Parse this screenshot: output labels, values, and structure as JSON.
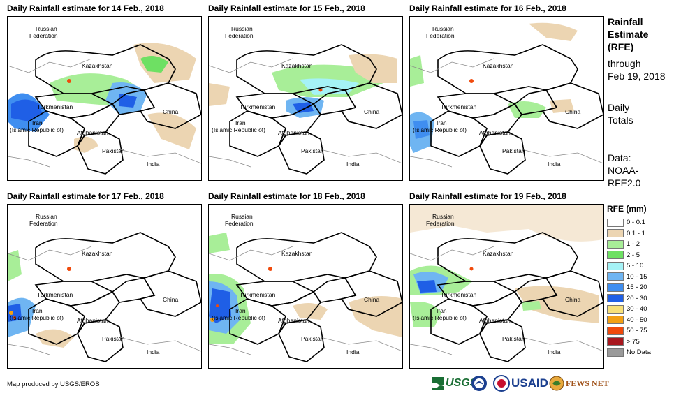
{
  "panels": [
    {
      "title": "Daily Rainfall estimate for 14 Feb., 2018"
    },
    {
      "title": "Daily Rainfall estimate for 15 Feb., 2018"
    },
    {
      "title": "Daily Rainfall estimate for 16 Feb., 2018"
    },
    {
      "title": "Daily Rainfall estimate for 17 Feb., 2018"
    },
    {
      "title": "Daily Rainfall estimate for 18 Feb., 2018"
    },
    {
      "title": "Daily Rainfall estimate for 19 Feb., 2018"
    }
  ],
  "map_labels": {
    "russia_1": "Russian",
    "russia_2": "Federation",
    "kazakhstan": "Kazakhstan",
    "turkmenistan": "Turkmenistan",
    "iran_1": "Iran",
    "iran_2": "(Islamic Republic of)",
    "afghanistan": "Afghanistan",
    "pakistan": "Pakistan",
    "china": "China",
    "india": "India"
  },
  "side_info": {
    "rfe_title_1": "Rainfall",
    "rfe_title_2": "Estimate",
    "rfe_title_3": "(RFE)",
    "through_1": "through",
    "through_2": "Feb 19, 2018",
    "totals_1": "Daily",
    "totals_2": "Totals",
    "data_1": "Data:",
    "data_2": "NOAA-",
    "data_3": "RFE2.0"
  },
  "legend": {
    "title": "RFE (mm)",
    "items": [
      {
        "label": "0 - 0.1",
        "color": "#ffffff"
      },
      {
        "label": "0.1 - 1",
        "color": "#ecd5b2"
      },
      {
        "label": "1 - 2",
        "color": "#a8ee98"
      },
      {
        "label": "2 - 5",
        "color": "#6ee063"
      },
      {
        "label": "5 - 10",
        "color": "#a5f2f6"
      },
      {
        "label": "10 - 15",
        "color": "#6fb5f2"
      },
      {
        "label": "15 - 20",
        "color": "#3f8ef0"
      },
      {
        "label": "20 - 30",
        "color": "#1f5fe6"
      },
      {
        "label": "30 - 40",
        "color": "#f7e07a"
      },
      {
        "label": "40 - 50",
        "color": "#f3a014"
      },
      {
        "label": "50 - 75",
        "color": "#f04a0c"
      },
      {
        "label": "> 75",
        "color": "#a8171e"
      },
      {
        "label": "No Data",
        "color": "#9a9a9a"
      }
    ]
  },
  "footer": {
    "credit": "Map produced by USGS/EROS"
  },
  "logos": {
    "usgs": "USGS",
    "usaid": "USAID",
    "fewsnet": "FEWS NET"
  }
}
